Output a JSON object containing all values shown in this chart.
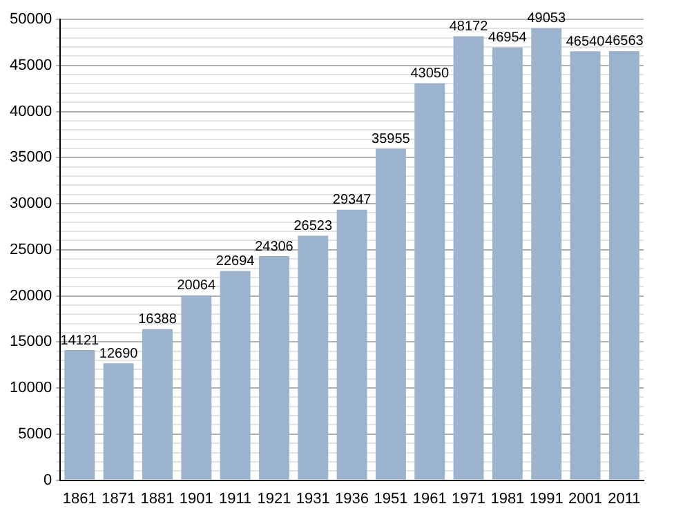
{
  "chart_data": {
    "type": "bar",
    "categories": [
      "1861",
      "1871",
      "1881",
      "1901",
      "1911",
      "1921",
      "1931",
      "1936",
      "1951",
      "1961",
      "1971",
      "1981",
      "1991",
      "2001",
      "2011"
    ],
    "values": [
      14121,
      12690,
      16388,
      20064,
      22694,
      24306,
      26523,
      29347,
      35955,
      43050,
      48172,
      46954,
      49053,
      46540,
      46563
    ],
    "color": "#9bb3cd",
    "ylim": [
      0,
      50000
    ],
    "yticks": [
      0,
      {
        "value": 1000,
        "label": null
      },
      {
        "value": 2000,
        "label": null
      },
      {
        "value": 3000,
        "label": null
      },
      {
        "value": 4000,
        "label": null
      },
      5000,
      {
        "value": 6000,
        "label": null
      },
      {
        "value": 7000,
        "label": null
      },
      {
        "value": 8000,
        "label": null
      },
      {
        "value": 9000,
        "label": null
      },
      10000,
      {
        "value": 11000,
        "label": null
      },
      {
        "value": 12000,
        "label": null
      },
      {
        "value": 13000,
        "label": null
      },
      {
        "value": 14000,
        "label": null
      },
      15000,
      {
        "value": 16000,
        "label": null
      },
      {
        "value": 17000,
        "label": null
      },
      {
        "value": 18000,
        "label": null
      },
      {
        "value": 19000,
        "label": null
      },
      20000,
      {
        "value": 21000,
        "label": null
      },
      {
        "value": 22000,
        "label": null
      },
      {
        "value": 23000,
        "label": null
      },
      {
        "value": 24000,
        "label": null
      },
      25000,
      {
        "value": 26000,
        "label": null
      },
      {
        "value": 27000,
        "label": null
      },
      {
        "value": 28000,
        "label": null
      },
      {
        "value": 29000,
        "label": null
      },
      30000,
      {
        "value": 31000,
        "label": null
      },
      {
        "value": 32000,
        "label": null
      },
      {
        "value": 33000,
        "label": null
      },
      {
        "value": 34000,
        "label": null
      },
      35000,
      {
        "value": 36000,
        "label": null
      },
      {
        "value": 37000,
        "label": null
      },
      {
        "value": 38000,
        "label": null
      },
      {
        "value": 39000,
        "label": null
      },
      40000,
      {
        "value": 41000,
        "label": null
      },
      {
        "value": 42000,
        "label": null
      },
      {
        "value": 43000,
        "label": null
      },
      {
        "value": 44000,
        "label": null
      },
      45000,
      {
        "value": 46000,
        "label": null
      },
      {
        "value": 47000,
        "label": null
      },
      {
        "value": 48000,
        "label": null
      },
      {
        "value": 49000,
        "label": null
      },
      50000
    ],
    "grid": "y",
    "data_labels": true
  }
}
